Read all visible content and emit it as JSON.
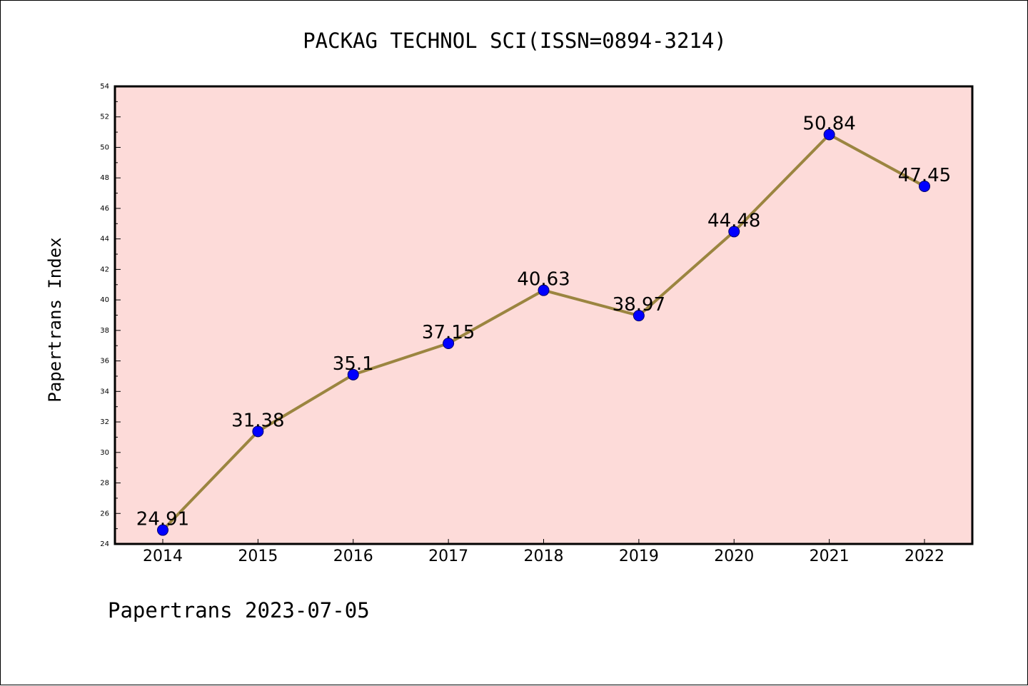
{
  "chart_data": {
    "type": "line",
    "title": "PACKAG TECHNOL SCI(ISSN=0894-3214)",
    "ylabel": "Papertrans Index",
    "xlabel": "",
    "footer": "Papertrans 2023-07-05",
    "x": [
      "2014",
      "2015",
      "2016",
      "2017",
      "2018",
      "2019",
      "2020",
      "2021",
      "2022"
    ],
    "series": [
      {
        "values": [
          24.91,
          31.38,
          35.1,
          37.15,
          40.63,
          38.97,
          44.48,
          50.84,
          47.45
        ],
        "labels": [
          "24.91",
          "31.38",
          "35.1",
          "37.15",
          "40.63",
          "38.97",
          "44.48",
          "50.84",
          "47.45"
        ]
      }
    ],
    "ylim": [
      24,
      54
    ],
    "yticks": [
      "24",
      "26",
      "28",
      "30",
      "32",
      "34",
      "36",
      "38",
      "40",
      "42",
      "44",
      "46",
      "48",
      "50",
      "52",
      "54"
    ],
    "grid": false,
    "colors": {
      "plot_background": "#fddbd9",
      "line": "#9b8540",
      "marker": "#0000ff"
    }
  }
}
